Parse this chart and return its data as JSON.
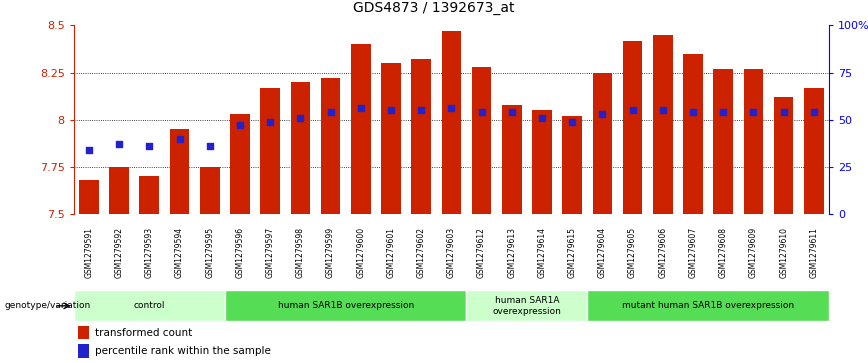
{
  "title": "GDS4873 / 1392673_at",
  "samples": [
    "GSM1279591",
    "GSM1279592",
    "GSM1279593",
    "GSM1279594",
    "GSM1279595",
    "GSM1279596",
    "GSM1279597",
    "GSM1279598",
    "GSM1279599",
    "GSM1279600",
    "GSM1279601",
    "GSM1279602",
    "GSM1279603",
    "GSM1279612",
    "GSM1279613",
    "GSM1279614",
    "GSM1279615",
    "GSM1279604",
    "GSM1279605",
    "GSM1279606",
    "GSM1279607",
    "GSM1279608",
    "GSM1279609",
    "GSM1279610",
    "GSM1279611"
  ],
  "bar_values": [
    7.68,
    7.75,
    7.7,
    7.95,
    7.75,
    8.03,
    8.17,
    8.2,
    8.22,
    8.4,
    8.3,
    8.32,
    8.47,
    8.28,
    8.08,
    8.05,
    8.02,
    8.25,
    8.42,
    8.45,
    8.35,
    8.27,
    8.27,
    8.12,
    8.17
  ],
  "percentile_values": [
    7.84,
    7.87,
    7.86,
    7.9,
    7.86,
    7.97,
    7.99,
    8.01,
    8.04,
    8.06,
    8.05,
    8.05,
    8.06,
    8.04,
    8.04,
    8.01,
    7.99,
    8.03,
    8.05,
    8.05,
    8.04,
    8.04,
    8.04,
    8.04,
    8.04
  ],
  "ymin": 7.5,
  "ymax": 8.5,
  "bar_color": "#cc2200",
  "dot_color": "#2222cc",
  "right_yticks": [
    0,
    25,
    50,
    75,
    100
  ],
  "right_yticklabels": [
    "0",
    "25",
    "50",
    "75",
    "100%"
  ],
  "left_yticks": [
    7.5,
    7.75,
    8.0,
    8.25,
    8.5
  ],
  "left_yticklabels": [
    "7.5",
    "7.75",
    "8",
    "8.25",
    "8.5"
  ],
  "grid_values": [
    7.75,
    8.0,
    8.25
  ],
  "groups": [
    {
      "label": "control",
      "start": 0,
      "end": 5,
      "color": "#ccffcc"
    },
    {
      "label": "human SAR1B overexpression",
      "start": 5,
      "end": 13,
      "color": "#55dd55"
    },
    {
      "label": "human SAR1A\noverexpression",
      "start": 13,
      "end": 17,
      "color": "#ccffcc"
    },
    {
      "label": "mutant human SAR1B overexpression",
      "start": 17,
      "end": 25,
      "color": "#55dd55"
    }
  ],
  "legend_label_bar": "transformed count",
  "legend_label_dot": "percentile rank within the sample",
  "genotype_label": "genotype/variation"
}
